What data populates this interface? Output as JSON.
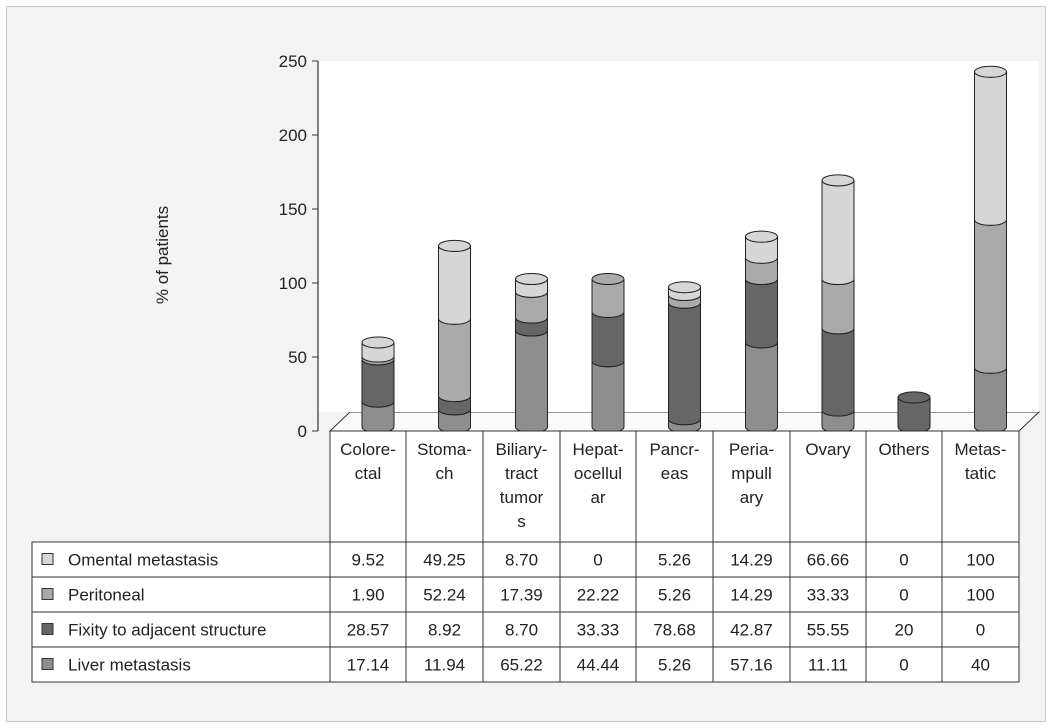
{
  "chart_data": {
    "type": "bar",
    "stacked": true,
    "style": "3d-cylinder",
    "ylabel": "% of patients",
    "ylim": [
      0,
      250
    ],
    "yticks": [
      0,
      50,
      100,
      150,
      200,
      250
    ],
    "categories": [
      [
        "Colore-",
        "ctal"
      ],
      [
        "Stoma-",
        "ch"
      ],
      [
        "Biliary-",
        "tract",
        "tumor",
        "s"
      ],
      [
        "Hepat-",
        "ocellul",
        "ar"
      ],
      [
        "Pancr-",
        "eas"
      ],
      [
        "Peria-",
        "mpull",
        "ary"
      ],
      [
        "Ovary"
      ],
      [
        "Others"
      ],
      [
        "Metas-",
        "tatic"
      ]
    ],
    "series": [
      {
        "name": "Liver metastasis",
        "color": "#8e8e8e",
        "values": [
          17.14,
          11.94,
          65.22,
          44.44,
          5.26,
          57.16,
          11.11,
          0,
          40
        ],
        "labels": [
          "17.14",
          "11.94",
          "65.22",
          "44.44",
          "5.26",
          "57.16",
          "11.11",
          "0",
          "40"
        ]
      },
      {
        "name": "Fixity to adjacent structure",
        "color": "#666666",
        "values": [
          28.57,
          8.92,
          8.7,
          33.33,
          78.68,
          42.87,
          55.55,
          20,
          0
        ],
        "labels": [
          "28.57",
          "8.92",
          "8.70",
          "33.33",
          "78.68",
          "42.87",
          "55.55",
          "20",
          "0"
        ]
      },
      {
        "name": "Peritoneal",
        "color": "#aaaaaa",
        "values": [
          1.9,
          52.24,
          17.39,
          22.22,
          5.26,
          14.29,
          33.33,
          0,
          100
        ],
        "labels": [
          "1.90",
          "52.24",
          "17.39",
          "22.22",
          "5.26",
          "14.29",
          "33.33",
          "0",
          "100"
        ]
      },
      {
        "name": "Omental metastasis",
        "color": "#d6d6d6",
        "values": [
          9.52,
          49.25,
          8.7,
          0,
          5.26,
          14.29,
          66.66,
          0,
          100
        ],
        "labels": [
          "9.52",
          "49.25",
          "8.70",
          "0",
          "5.26",
          "14.29",
          "66.66",
          "0",
          "100"
        ]
      }
    ],
    "table_row_order": [
      "Omental metastasis",
      "Peritoneal",
      "Fixity to adjacent structure",
      "Liver metastasis"
    ],
    "grid": false,
    "legend": "data-table-below"
  }
}
